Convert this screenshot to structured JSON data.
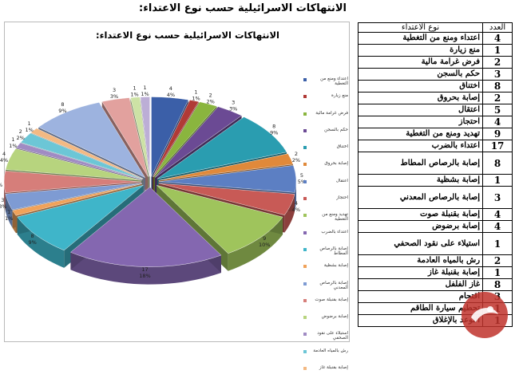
{
  "page_title": "الانتهاكات الاسرائيلية حسب نوع الاعتداء:",
  "table": {
    "headers": {
      "type": "نوع الاعتداء",
      "count": "العدد"
    },
    "rows": [
      {
        "type": "اعتداء ومنع من التغطية",
        "count": "4"
      },
      {
        "type": "منع زيارة",
        "count": "1"
      },
      {
        "type": "فرض غرامة مالية",
        "count": "2"
      },
      {
        "type": "حكم بالسجن",
        "count": "3"
      },
      {
        "type": "اختناق",
        "count": "8"
      },
      {
        "type": "إصابة بحروق",
        "count": "2"
      },
      {
        "type": "اعتقال",
        "count": "5"
      },
      {
        "type": "احتجاز",
        "count": "4"
      },
      {
        "type": "تهديد ومنع من التغطية",
        "count": "9"
      },
      {
        "type": "اعتداء بالضرب",
        "count": "17"
      },
      {
        "type": "إصابة بالرصاص المطاط",
        "count": "8"
      },
      {
        "type": "إصابة بشظية",
        "count": "1"
      },
      {
        "type": "إصابة بالرصاص المعدني",
        "count": "3"
      },
      {
        "type": "إصابة بقنبلة صوت",
        "count": "4"
      },
      {
        "type": "إصابة برضوض",
        "count": "4"
      },
      {
        "type": "استيلاء على نقود الصحفي",
        "count": "1"
      },
      {
        "type": "رش بالمياه العادمة",
        "count": "2"
      },
      {
        "type": "إصابة بقنبلة غاز",
        "count": "1"
      },
      {
        "type": "غاز الفلفل",
        "count": "8"
      },
      {
        "type": "اقتحام",
        "count": "3"
      },
      {
        "type": "تحطيم سيارة الطاقم",
        "count": "1"
      },
      {
        "type": "التوعد بالإغلاق",
        "count": "1"
      }
    ]
  },
  "chart_data": {
    "type": "pie",
    "style": "3d exploded",
    "title": "الانتهاكات الاسرائيلية حسب نوع الاعتداء:",
    "legend_position": "right",
    "categories": [
      "اعتداء ومنع من التغطية",
      "منع زيارة",
      "فرض غرامة مالية",
      "حكم بالسجن",
      "اختناق",
      "إصابة بحروق",
      "اعتقال",
      "احتجاز",
      "تهديد ومنع من التغطية",
      "اعتداء بالضرب",
      "إصابة بالرصاص المطاط",
      "إصابة بشظية",
      "إصابة بالرصاص المعدني",
      "إصابة بقنبلة صوت",
      "إصابة برضوض",
      "استيلاء على نقود الصحفي",
      "رش بالمياه العادمة",
      "إصابة بقنبلة غاز",
      "غاز الفلفل",
      "اقتحام",
      "تحطيم سيارة الطاقم",
      "التوعد بالإغلاق"
    ],
    "values": [
      4,
      1,
      2,
      3,
      8,
      2,
      5,
      4,
      9,
      17,
      8,
      1,
      3,
      4,
      4,
      1,
      2,
      1,
      8,
      3,
      1,
      1
    ],
    "percent_labels": [
      "4%",
      "1%",
      "2%",
      "3%",
      "9%",
      "2%",
      "5%",
      "4%",
      "10%",
      "18%",
      "9%",
      "1%",
      "3%",
      "4%",
      "4%",
      "1%",
      "2%",
      "1%",
      "9%",
      "3%",
      "1%",
      "1%"
    ],
    "legend_labels": [
      "اعتداء ومنع من التغطية",
      "منع زيارة",
      "فرض غرامة مالية",
      "حكم بالسجن",
      "اختناق",
      "إصابة بحروق",
      "اعتقال",
      "احتجاز",
      "تهديد ومنع من التغطية",
      "اعتداء بالضرب",
      "إصابة بالرصاص المطاط",
      "إصابة بشظية",
      "إصابة بالرصاص المعدني",
      "إصابة بقنبلة صوت",
      "إصابة برضوض",
      "استيلاء على نقود الصحفي",
      "رش بالمياه العادمة",
      "إصابة بقنبلة غاز"
    ],
    "colors": [
      "#3b5fa8",
      "#b03a36",
      "#8ab53e",
      "#6b4a94",
      "#2a9db0",
      "#e0893a",
      "#5c7fc3",
      "#c85a56",
      "#9fc45c",
      "#8467b0",
      "#3fb5c9",
      "#f0a25a",
      "#7e9bd3",
      "#d67e7a",
      "#b7d47e",
      "#a08bc3",
      "#6cc6d6",
      "#f3b983",
      "#9db3df",
      "#e2a19e",
      "#cde2a5",
      "#bcaed6"
    ]
  }
}
